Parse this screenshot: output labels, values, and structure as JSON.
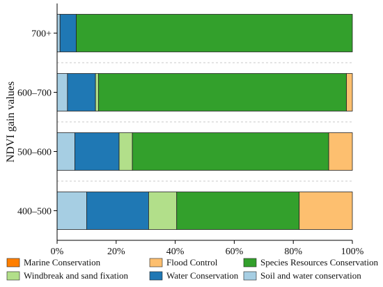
{
  "chart_data": {
    "type": "bar",
    "orientation": "horizontal",
    "stacked": true,
    "percent": true,
    "categories": [
      "700+",
      "600–700",
      "500–600",
      "400–500"
    ],
    "ylabel": "NDVI gain values",
    "xlabel": "",
    "xlim": [
      0,
      100
    ],
    "xticks": [
      "0%",
      "20%",
      "40%",
      "60%",
      "80%",
      "100%"
    ],
    "grid": "horizontal dashed separators",
    "legend_position": "bottom",
    "series": [
      {
        "name": "Soil and water conservation",
        "color": "#a6cee3",
        "values": [
          1,
          3.5,
          6,
          10
        ]
      },
      {
        "name": "Water Conservation",
        "color": "#1f78b4",
        "values": [
          5.5,
          9.5,
          15,
          21
        ]
      },
      {
        "name": "Windbreak and sand fixation",
        "color": "#b2df8a",
        "values": [
          0,
          1,
          4.5,
          9.5
        ]
      },
      {
        "name": "Species Resources Conservation",
        "color": "#33a02c",
        "values": [
          93.5,
          84,
          66.5,
          41.5
        ]
      },
      {
        "name": "Flood Control",
        "color": "#fdbf6f",
        "values": [
          0,
          2,
          8,
          18
        ]
      },
      {
        "name": "Marine Conservation",
        "color": "#ff7f00",
        "values": [
          0,
          0,
          0,
          0
        ]
      }
    ],
    "legend_order": [
      "Marine Conservation",
      "Flood Control",
      "Species Resources Conservation",
      "Windbreak and sand fixation",
      "Water Conservation",
      "Soil and water conservation"
    ]
  }
}
